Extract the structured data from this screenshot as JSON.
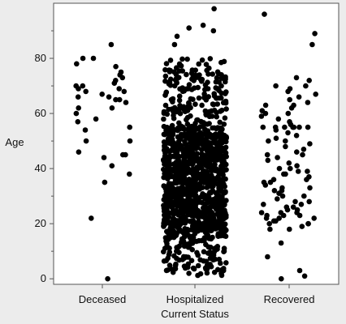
{
  "chart_data": {
    "type": "scatter",
    "title": "",
    "xlabel": "Current Status",
    "ylabel": "Age",
    "categories": [
      "Deceased",
      "Hospitalized",
      "Recovered"
    ],
    "ylim": [
      -2,
      100
    ],
    "yticks": [
      0,
      20,
      40,
      60,
      80
    ],
    "grid": false,
    "legend": "none",
    "point_color": "#000000",
    "plot_background": "#ffffff",
    "page_background": "#ececec",
    "series": [
      {
        "category": "Deceased",
        "jitter_width": 0.3,
        "values": [
          0,
          22,
          35,
          38,
          41,
          44,
          45,
          45,
          46,
          50,
          50,
          54,
          55,
          57,
          58,
          60,
          62,
          62,
          64,
          65,
          65,
          66,
          66,
          67,
          68,
          68,
          69,
          69,
          70,
          70,
          71,
          72,
          73,
          74,
          75,
          77,
          78,
          80,
          80,
          85
        ]
      },
      {
        "category": "Hospitalized",
        "jitter_width": 0.34,
        "note_density": "dense",
        "bulk_range": [
          1,
          80
        ],
        "bulk_count": 1300,
        "outliers": [
          85,
          88,
          90,
          91,
          92,
          98
        ]
      },
      {
        "category": "Recovered",
        "jitter_width": 0.3,
        "values": [
          0,
          1,
          3,
          8,
          13,
          18,
          18,
          19,
          20,
          20,
          20,
          21,
          21,
          22,
          22,
          22,
          23,
          23,
          23,
          24,
          24,
          24,
          25,
          25,
          26,
          26,
          27,
          27,
          28,
          28,
          29,
          30,
          30,
          31,
          32,
          32,
          33,
          33,
          34,
          35,
          35,
          36,
          36,
          37,
          38,
          38,
          39,
          39,
          40,
          40,
          41,
          42,
          43,
          44,
          45,
          45,
          46,
          47,
          48,
          49,
          50,
          50,
          51,
          52,
          53,
          54,
          55,
          55,
          55,
          55,
          55,
          55,
          55,
          56,
          57,
          58,
          59,
          60,
          60,
          61,
          62,
          63,
          63,
          64,
          65,
          66,
          67,
          68,
          69,
          70,
          70,
          72,
          73,
          85,
          89,
          96
        ]
      }
    ]
  }
}
